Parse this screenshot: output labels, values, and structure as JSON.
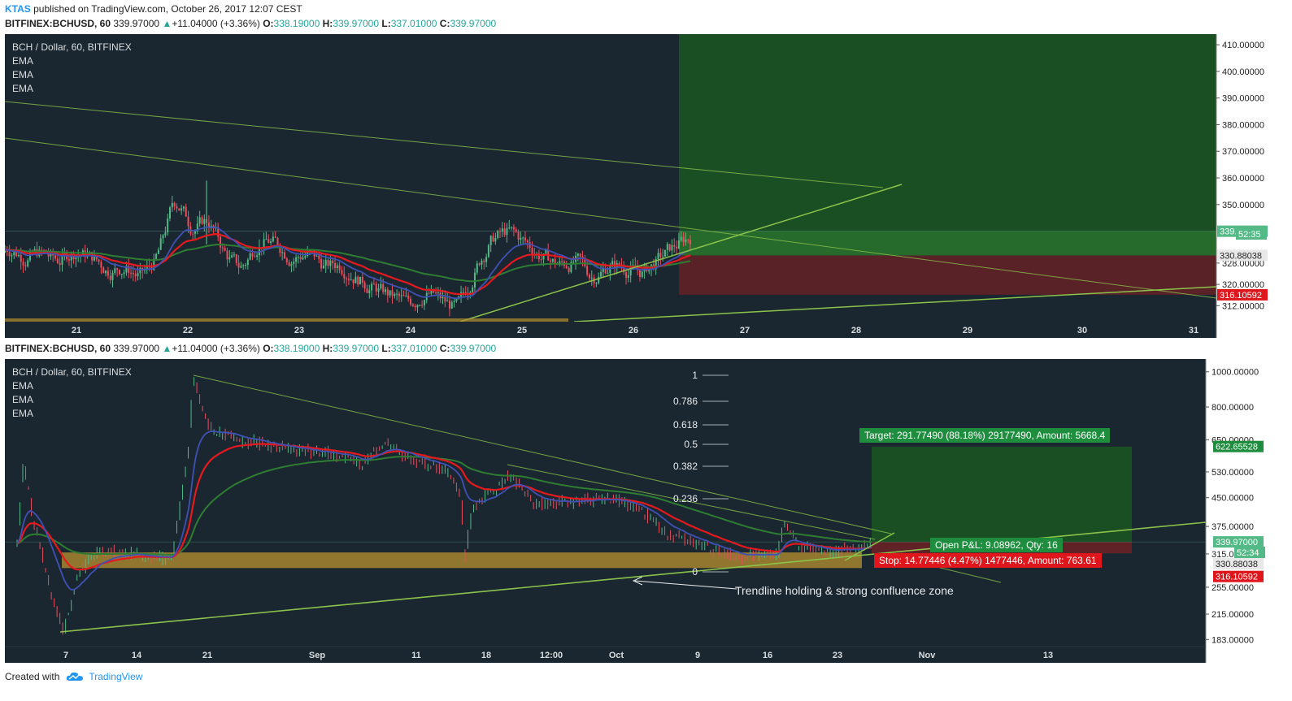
{
  "publish_line": {
    "user": "KTAS",
    "text": " published on TradingView.com, October 26, 2017 12:07 CEST"
  },
  "header": {
    "symbol": "BITFINEX:BCHUSD, 60",
    "price": "339.97000",
    "change": "+11.04000 (+3.36%)",
    "o_label": "O:",
    "o": "338.19000",
    "h_label": "H:",
    "h": "339.97000",
    "l_label": "L:",
    "l": "337.01000",
    "c_label": "C:",
    "c": "339.97000"
  },
  "legend": {
    "title": "BCH / Dollar, 60, BITFINEX",
    "studies": [
      "EMA",
      "EMA",
      "EMA"
    ]
  },
  "footer": {
    "created": "Created with",
    "brand": "TradingView"
  },
  "colors": {
    "bg": "#1a2730",
    "up": "#53b987",
    "down": "#eb4d5c",
    "ema_fast": "#3f51b5",
    "ema_mid": "#e5191e",
    "ema_slow": "#2e7d32",
    "trend": "#8bc34a",
    "zone": "#b8912f",
    "target": "#1b5e20",
    "stop": "#b71c1c"
  },
  "chart_data": [
    {
      "type": "candlestick",
      "name": "top",
      "x_ticks": [
        "21",
        "22",
        "23",
        "24",
        "25",
        "26",
        "27",
        "28",
        "29",
        "30",
        "31"
      ],
      "y_ticks": [
        "410.00000",
        "400.00000",
        "390.00000",
        "380.00000",
        "370.00000",
        "360.00000",
        "350.00000",
        "328.00000",
        "320.00000",
        "312.00000"
      ],
      "price_labels": [
        "339.97000",
        "52:35",
        "330.88038",
        "316.10592"
      ],
      "ylim": [
        306,
        414
      ],
      "target_zone": [
        330.88,
        414
      ],
      "stop_zone": [
        316.1,
        330.88
      ],
      "candles_approx": [
        [
          335,
          330
        ],
        [
          330,
          332
        ],
        [
          332,
          328
        ],
        [
          328,
          333
        ],
        [
          333,
          330
        ],
        [
          330,
          325
        ],
        [
          325,
          327
        ],
        [
          327,
          322
        ],
        [
          322,
          331
        ],
        [
          331,
          355
        ],
        [
          355,
          340
        ],
        [
          340,
          345
        ],
        [
          345,
          330
        ],
        [
          330,
          325
        ],
        [
          325,
          338
        ],
        [
          338,
          335
        ],
        [
          335,
          330
        ],
        [
          330,
          332
        ],
        [
          332,
          326
        ],
        [
          326,
          328
        ],
        [
          328,
          322
        ],
        [
          322,
          318
        ],
        [
          318,
          315
        ],
        [
          315,
          312
        ],
        [
          312,
          318
        ],
        [
          318,
          313
        ],
        [
          313,
          310
        ],
        [
          310,
          328
        ],
        [
          328,
          338
        ],
        [
          338,
          340
        ],
        [
          340,
          335
        ],
        [
          335,
          330
        ],
        [
          330,
          327
        ],
        [
          327,
          329
        ],
        [
          329,
          322
        ],
        [
          322,
          328
        ],
        [
          328,
          326
        ],
        [
          326,
          324
        ],
        [
          324,
          330
        ],
        [
          330,
          335
        ],
        [
          335,
          339
        ],
        [
          339,
          340
        ]
      ]
    },
    {
      "type": "candlestick",
      "name": "bottom",
      "x_ticks": [
        "7",
        "14",
        "21",
        "Sep",
        "11",
        "18",
        "12:00",
        "Oct",
        "9",
        "16",
        "23",
        "Nov",
        "13"
      ],
      "y_ticks": [
        "1000.00000",
        "800.00000",
        "650.00000",
        "530.00000",
        "450.00000",
        "375.00000",
        "315.00000",
        "255.00000",
        "215.00000",
        "183.00000"
      ],
      "price_labels": [
        "622.65528",
        "339.97000",
        "52:34",
        "330.88038",
        "316.10592"
      ],
      "fib_levels": [
        "1",
        "0.786",
        "0.618",
        "0.5",
        "0.382",
        "0.236",
        "0"
      ],
      "annotations": {
        "target": "Target: 291.77490 (88.18%) 29177490, Amount: 5668.4",
        "pnl": "Open P&L: 9.08962, Qty: 16",
        "stop": "Stop: 14.77446 (4.47%) 1477446, Amount: 763.61",
        "note": "Trendline holding & strong confluence zone"
      }
    }
  ]
}
